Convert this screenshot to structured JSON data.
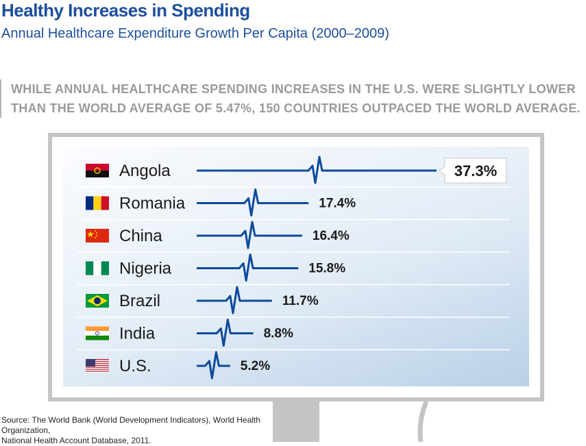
{
  "header": {
    "title": "Healthy Increases in Spending",
    "subtitle": "Annual Healthcare Expenditure Growth Per Capita (2000–2009)"
  },
  "callout": {
    "line1": "WHILE ANNUAL HEALTHCARE SPENDING INCREASES IN THE U.S. WERE SLIGHTLY LOWER",
    "line2": "THAN THE WORLD AVERAGE OF 5.47%, 150 COUNTRIES OUTPACED THE WORLD AVERAGE."
  },
  "footer": {
    "source_line1": "Source: The World Bank (World Development Indicators), World Health Organization,",
    "source_line2": "National Health Account Database, 2011."
  },
  "colors": {
    "accent": "#1c4f9c",
    "line": "#0d4a9a",
    "callout_text": "#9a9a9a",
    "frame": "#c4c4c4"
  },
  "chart_data": {
    "type": "bar",
    "title": "Annual Healthcare Expenditure Growth Per Capita (2000–2009)",
    "categories": [
      "Angola",
      "Romania",
      "China",
      "Nigeria",
      "Brazil",
      "India",
      "U.S."
    ],
    "values": [
      37.3,
      17.4,
      16.4,
      15.8,
      11.7,
      8.8,
      5.2
    ],
    "value_labels": [
      "37.3%",
      "17.4%",
      "16.4%",
      "15.8%",
      "11.7%",
      "8.8%",
      "5.2%"
    ],
    "flags": [
      "angola-flag-icon",
      "romania-flag-icon",
      "china-flag-icon",
      "nigeria-flag-icon",
      "brazil-flag-icon",
      "india-flag-icon",
      "us-flag-icon"
    ],
    "orientation": "horizontal",
    "grid": false,
    "legend": "none"
  }
}
